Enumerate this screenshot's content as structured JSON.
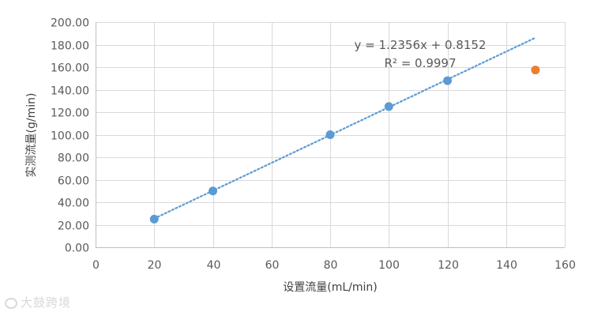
{
  "chart_data": {
    "type": "scatter",
    "title": "",
    "xlabel": "设置流量(mL/min)",
    "ylabel": "实测流量(g/min)",
    "xlim": [
      0,
      160
    ],
    "ylim": [
      0,
      200
    ],
    "x_ticks": [
      "0",
      "20",
      "40",
      "60",
      "80",
      "100",
      "120",
      "140",
      "160"
    ],
    "y_ticks": [
      "0.00",
      "20.00",
      "40.00",
      "60.00",
      "80.00",
      "100.00",
      "120.00",
      "140.00",
      "160.00",
      "180.00",
      "200.00"
    ],
    "grid": true,
    "legend": "none",
    "series": [
      {
        "color": "#5b9bd5",
        "points": [
          {
            "x": 20,
            "y": 25.0
          },
          {
            "x": 40,
            "y": 50.0
          },
          {
            "x": 80,
            "y": 100.0
          },
          {
            "x": 100,
            "y": 125.0
          },
          {
            "x": 120,
            "y": 148.0
          }
        ]
      },
      {
        "color": "#ed7d31",
        "points": [
          {
            "x": 150,
            "y": 157.5
          }
        ]
      }
    ],
    "trendline": {
      "type": "linear",
      "style": "dotted",
      "color": "#5b9bd5",
      "slope": 1.2356,
      "intercept": 0.8152,
      "x_range": [
        20,
        150
      ],
      "equation_text": "y = 1.2356x + 0.8152",
      "r2_text": "R² = 0.9997"
    }
  },
  "watermark_text": "大鼓跨境"
}
